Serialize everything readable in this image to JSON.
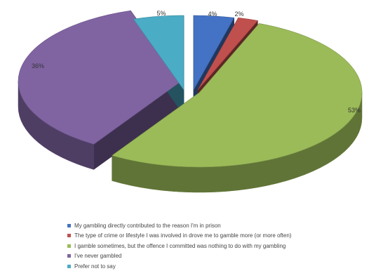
{
  "chart_data": {
    "type": "pie",
    "exploded": true,
    "three_d": true,
    "slices": [
      {
        "label": "My gambling directly contributed to the reason I'm in prison",
        "value": 4,
        "display": "4%",
        "color": "#4472C4"
      },
      {
        "label": "The type of crime or lifestyle I was involved in drove me to gamble more (or more often)",
        "value": 2,
        "display": "2%",
        "color": "#C0504D"
      },
      {
        "label": "I gamble sometimes, but the offence I committed was nothing to do with my gambling",
        "value": 53,
        "display": "53%",
        "color": "#9BBB59"
      },
      {
        "label": "I've never gambled",
        "value": 36,
        "display": "36%",
        "color": "#8064A2"
      },
      {
        "label": "Prefer not to say",
        "value": 5,
        "display": "5%",
        "color": "#4BACC6"
      }
    ],
    "legend_position": "bottom"
  }
}
